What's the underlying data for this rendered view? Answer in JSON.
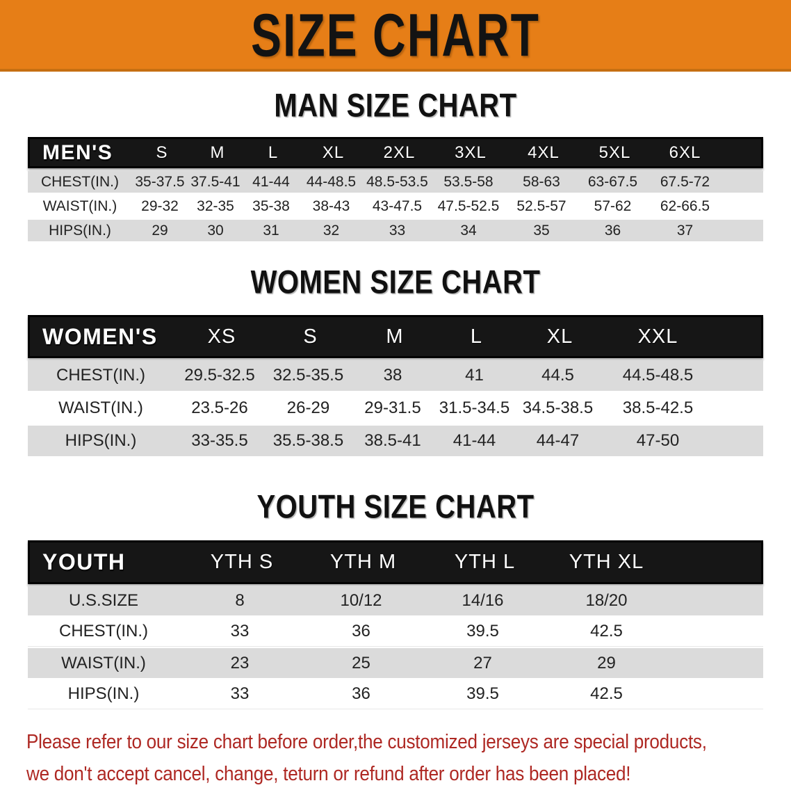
{
  "banner": {
    "title": "SIZE CHART",
    "background": "#E67E17"
  },
  "sections": [
    {
      "heading": "MAN SIZE CHART",
      "table": {
        "corner_label": "MEN'S",
        "columns": [
          "S",
          "M",
          "L",
          "XL",
          "2XL",
          "3XL",
          "4XL",
          "5XL",
          "6XL"
        ],
        "rows": [
          {
            "label": "CHEST(IN.)",
            "values": [
              "35-37.5",
              "37.5-41",
              "41-44",
              "44-48.5",
              "48.5-53.5",
              "53.5-58",
              "58-63",
              "63-67.5",
              "67.5-72"
            ]
          },
          {
            "label": "WAIST(IN.)",
            "values": [
              "29-32",
              "32-35",
              "35-38",
              "38-43",
              "43-47.5",
              "47.5-52.5",
              "52.5-57",
              "57-62",
              "62-66.5"
            ]
          },
          {
            "label": "HIPS(IN.)",
            "values": [
              "29",
              "30",
              "31",
              "32",
              "33",
              "34",
              "35",
              "36",
              "37"
            ]
          }
        ]
      }
    },
    {
      "heading": "WOMEN SIZE CHART",
      "table": {
        "corner_label": "WOMEN'S",
        "columns": [
          "XS",
          "S",
          "M",
          "L",
          "XL",
          "XXL"
        ],
        "rows": [
          {
            "label": "CHEST(IN.)",
            "values": [
              "29.5-32.5",
              "32.5-35.5",
              "38",
              "41",
              "44.5",
              "44.5-48.5"
            ]
          },
          {
            "label": "WAIST(IN.)",
            "values": [
              "23.5-26",
              "26-29",
              "29-31.5",
              "31.5-34.5",
              "34.5-38.5",
              "38.5-42.5"
            ]
          },
          {
            "label": "HIPS(IN.)",
            "values": [
              "33-35.5",
              "35.5-38.5",
              "38.5-41",
              "41-44",
              "44-47",
              "47-50"
            ]
          }
        ]
      }
    },
    {
      "heading": "YOUTH SIZE CHART",
      "table": {
        "corner_label": "YOUTH",
        "columns": [
          "YTH S",
          "YTH M",
          "YTH L",
          "YTH XL"
        ],
        "rows": [
          {
            "label": "U.S.SIZE",
            "values": [
              "8",
              "10/12",
              "14/16",
              "18/20"
            ]
          },
          {
            "label": "CHEST(IN.)",
            "values": [
              "33",
              "36",
              "39.5",
              "42.5"
            ]
          },
          {
            "label": "WAIST(IN.)",
            "values": [
              "23",
              "25",
              "27",
              "29"
            ]
          },
          {
            "label": "HIPS(IN.)",
            "values": [
              "33",
              "36",
              "39.5",
              "42.5"
            ]
          }
        ]
      }
    }
  ],
  "footer": {
    "line1": "Please refer to our size chart before order,the customized jerseys are special products,",
    "line2": "we don't accept cancel, change, teturn or refund after order has been placed!",
    "text_color": "#AE2823"
  }
}
